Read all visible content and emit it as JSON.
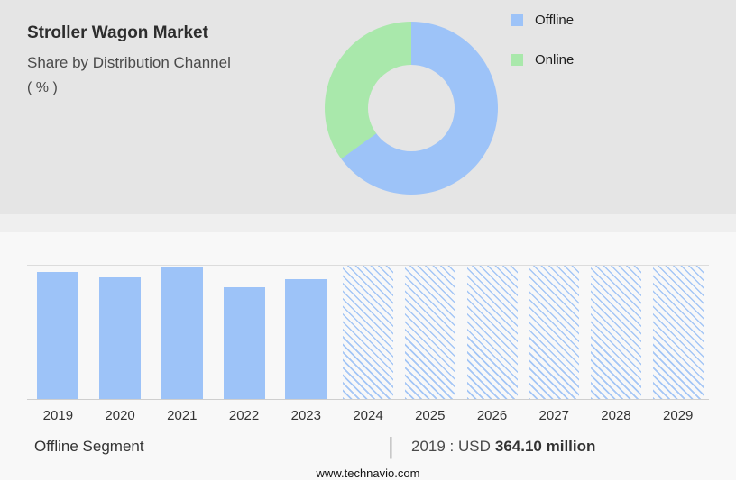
{
  "header": {
    "title": "Stroller Wagon Market",
    "subtitle": "Share by Distribution Channel",
    "unit_label": "( % )"
  },
  "legend": {
    "items": [
      {
        "label": "Offline",
        "color": "#9dc3f8"
      },
      {
        "label": "Online",
        "color": "#a9e8ab"
      }
    ]
  },
  "chart_data": [
    {
      "type": "pie",
      "title": "Stroller Wagon Market — Share by Distribution Channel ( % )",
      "labels": [
        "Offline",
        "Online"
      ],
      "values": [
        65,
        35
      ],
      "colors": [
        "#9dc3f8",
        "#a9e8ab"
      ],
      "donut": true,
      "legend_position": "right",
      "note": "Slice percentages estimated from arc angles; no numeric labels shown in image"
    },
    {
      "type": "bar",
      "categories": [
        "2019",
        "2020",
        "2021",
        "2022",
        "2023",
        "2024",
        "2025",
        "2026",
        "2027",
        "2028",
        "2029"
      ],
      "values": [
        95,
        91,
        99,
        84,
        90,
        100,
        100,
        100,
        100,
        100,
        100
      ],
      "bar_styles": [
        "solid",
        "solid",
        "solid",
        "solid",
        "solid",
        "hatched",
        "hatched",
        "hatched",
        "hatched",
        "hatched",
        "hatched"
      ],
      "color": "#9dc3f8",
      "ylim": [
        0,
        100
      ],
      "grid": false,
      "note": "Bar heights are % of plot height estimated from pixels; hatched bars (2024-2029) are forecast placeholders at full height",
      "known_values": {
        "2019": "USD 364.10 million"
      }
    }
  ],
  "footer": {
    "segment_label": "Offline Segment",
    "separator": "|",
    "value_prefix": "2019 : USD",
    "value_bold": "364.10 million",
    "website": "www.technavio.com"
  }
}
